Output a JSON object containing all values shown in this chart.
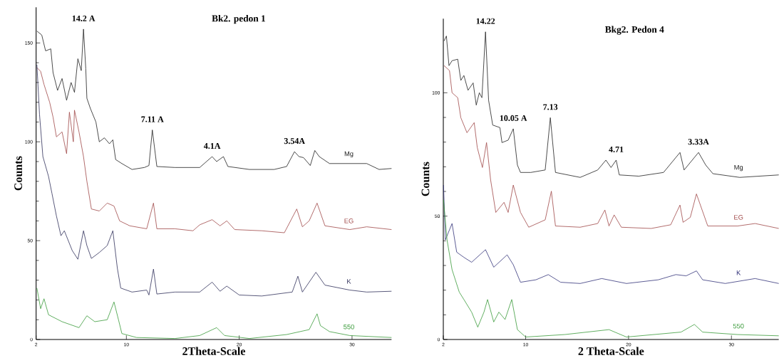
{
  "chart_data": [
    {
      "type": "line",
      "title": "Bk2. pedon 1",
      "xlabel": "2Theta-Scale",
      "ylabel": "Counts",
      "xlim": [
        2,
        33.5
      ],
      "ylim": [
        0,
        168
      ],
      "xticks": [
        2,
        10,
        20,
        30
      ],
      "yticks": [
        0,
        50,
        100,
        150
      ],
      "series": [
        {
          "name": "Mg",
          "color": "#202020",
          "x": [
            2.07,
            2.5,
            2.84,
            3.3,
            3.5,
            3.9,
            4.3,
            4.7,
            5.1,
            5.4,
            5.7,
            6.0,
            6.2,
            6.4,
            6.5,
            6.8,
            7.3,
            7.6,
            8.05,
            8.5,
            8.8,
            9.05,
            9.6,
            10.5,
            11.6,
            12.0,
            12.3,
            12.7,
            14.3,
            16.5,
            17.6,
            18.0,
            18.6,
            19.0,
            20.9,
            23.1,
            24.2,
            24.9,
            25.3,
            25.7,
            26.3,
            26.7,
            27.1,
            28.0,
            29.8,
            31.3,
            32.4,
            33.5
          ],
          "values": [
            156,
            154,
            146,
            147,
            135,
            126,
            132,
            121,
            130,
            125,
            142,
            136,
            157,
            137,
            122,
            117,
            110,
            100,
            102,
            99,
            101,
            91,
            89,
            86,
            87,
            88,
            106,
            87.5,
            87,
            87,
            92.5,
            90,
            92.5,
            87.5,
            86,
            86,
            87.5,
            95,
            92.5,
            92,
            88,
            95.6,
            92.5,
            89,
            89,
            89,
            86,
            86.5
          ]
        },
        {
          "name": "EG",
          "color": "#a04848",
          "x": [
            2.07,
            2.4,
            2.7,
            3.2,
            3.5,
            3.8,
            4.3,
            4.7,
            4.95,
            5.3,
            5.4,
            5.8,
            6.2,
            6.5,
            6.9,
            7.6,
            8.3,
            8.9,
            9.4,
            10.3,
            11.8,
            12.4,
            12.7,
            14.3,
            15.9,
            16.5,
            17.6,
            18.3,
            18.9,
            19.6,
            22.0,
            24.0,
            25.1,
            25.6,
            26.2,
            26.9,
            27.6,
            29.8,
            31.3,
            33.5
          ],
          "values": [
            137.5,
            135.6,
            129,
            120,
            112.5,
            102.5,
            105,
            94,
            115,
            100,
            116,
            105,
            92.5,
            80,
            66,
            65,
            69,
            67.5,
            60,
            57.5,
            56,
            69,
            56,
            56,
            55,
            58,
            60.6,
            57.5,
            60,
            55.6,
            55,
            54,
            66,
            57,
            60,
            69,
            57.5,
            55.6,
            57,
            55.6
          ]
        },
        {
          "name": "K",
          "color": "#30305a",
          "x": [
            2.07,
            2.3,
            2.6,
            3.1,
            3.4,
            3.8,
            4.2,
            4.5,
            5.2,
            5.7,
            6.2,
            6.5,
            6.9,
            7.6,
            8.3,
            8.8,
            9.2,
            9.5,
            10.5,
            11.8,
            12.0,
            12.4,
            12.7,
            14.3,
            16.5,
            17.6,
            18.3,
            18.9,
            20.0,
            22.0,
            24.7,
            25.2,
            25.6,
            26.8,
            27.6,
            29.8,
            31.3,
            33.5
          ],
          "values": [
            139,
            114,
            92.5,
            82.5,
            74,
            62.5,
            52.5,
            55,
            45,
            40.6,
            55,
            47.5,
            41,
            44,
            47.5,
            55,
            36,
            26,
            24,
            25,
            22.5,
            35.6,
            23,
            24,
            24,
            29,
            24.4,
            27,
            22.5,
            22,
            24,
            32,
            24,
            34,
            27.5,
            25,
            24,
            24.4
          ]
        },
        {
          "name": "550",
          "color": "#3a9a3a",
          "x": [
            2.07,
            2.4,
            2.7,
            3.1,
            4.3,
            5.8,
            6.5,
            7.2,
            8.3,
            8.9,
            9.3,
            9.6,
            10.9,
            14.3,
            16.5,
            18.0,
            18.7,
            20.9,
            24.2,
            26.2,
            26.9,
            27.2,
            28.0,
            29.8,
            33.5
          ],
          "values": [
            26,
            15.6,
            20.6,
            12.5,
            9,
            6,
            12,
            9,
            10,
            19,
            10,
            3,
            1,
            0.5,
            2,
            6,
            2,
            0.5,
            2.5,
            5,
            13,
            7,
            4,
            2,
            1
          ]
        }
      ],
      "annotations": [
        {
          "text": "14.2 A",
          "x": 6.2,
          "y": 157
        },
        {
          "text": "7.11 A",
          "x": 12.3,
          "y": 106
        },
        {
          "text": "4.1A",
          "x": 17.6,
          "y": 92.5
        },
        {
          "text": "3.54A",
          "x": 24.9,
          "y": 95
        }
      ]
    },
    {
      "type": "line",
      "title": "Bkg2. Pedon 4",
      "xlabel": "2 Theta-Scale",
      "ylabel": "Counts",
      "xlim": [
        2,
        34.6
      ],
      "ylim": [
        0,
        130
      ],
      "xticks": [
        2,
        10,
        20,
        30
      ],
      "yticks": [
        0,
        50,
        100
      ],
      "series": [
        {
          "name": "Mg",
          "color": "#202020",
          "x": [
            2.07,
            2.3,
            2.55,
            2.85,
            3.4,
            3.7,
            4.0,
            4.4,
            4.9,
            5.2,
            5.5,
            5.75,
            6.1,
            6.4,
            6.8,
            7.5,
            7.7,
            8.3,
            8.8,
            9.2,
            9.5,
            10.5,
            11.9,
            12.4,
            12.9,
            15.3,
            17.0,
            17.8,
            18.3,
            18.8,
            19.1,
            21.0,
            23.4,
            25.0,
            25.4,
            26.8,
            27.5,
            28.2,
            30.8,
            34.6
          ],
          "values": [
            121,
            123,
            111,
            113,
            113.6,
            105,
            107,
            101,
            104,
            95,
            100,
            98,
            124.7,
            97,
            86.9,
            85.9,
            79.8,
            80.8,
            85.4,
            70.7,
            67.7,
            67.7,
            68.7,
            89.9,
            67.7,
            65.7,
            68.7,
            72.7,
            69.7,
            72.7,
            66.7,
            66.2,
            67.7,
            75.8,
            68.7,
            75.8,
            70.7,
            67.2,
            65.7,
            66.7
          ]
        },
        {
          "name": "EG",
          "color": "#a04848",
          "x": [
            2.07,
            2.6,
            2.85,
            3.4,
            3.7,
            4.3,
            5.0,
            5.3,
            5.8,
            6.2,
            6.6,
            7.1,
            7.9,
            8.3,
            8.8,
            9.5,
            10.3,
            11.9,
            12.5,
            12.9,
            15.3,
            17.0,
            17.7,
            18.1,
            18.6,
            19.3,
            22.2,
            24.1,
            25.0,
            25.3,
            26.0,
            26.6,
            27.7,
            30.6,
            32.3,
            34.6
          ],
          "values": [
            111,
            109,
            100,
            98,
            89.9,
            83.8,
            87.9,
            77.8,
            69.7,
            79.8,
            64.6,
            51.5,
            55.6,
            51.5,
            62.6,
            51.5,
            45.5,
            48.5,
            60.1,
            46,
            45.5,
            47,
            52.5,
            46,
            50.5,
            45.5,
            45,
            46.5,
            54.5,
            47.5,
            49.5,
            59,
            46,
            46,
            47,
            45
          ]
        },
        {
          "name": "K",
          "color": "#33337a",
          "x": [
            2.02,
            2.2,
            2.85,
            3.3,
            4.0,
            4.75,
            6.1,
            6.9,
            8.2,
            8.8,
            9.5,
            11.0,
            12.2,
            13.4,
            15.3,
            17.4,
            19.8,
            22.9,
            24.6,
            25.6,
            26.6,
            27.2,
            29.4,
            32.3,
            34.6
          ],
          "values": [
            62.6,
            40.4,
            47,
            35.4,
            33.3,
            31.3,
            36.4,
            29.3,
            34.3,
            30.3,
            23.2,
            24.2,
            26.3,
            23.2,
            22.7,
            24.7,
            22.7,
            24.2,
            26.3,
            25.8,
            27.8,
            24.2,
            22.7,
            24.7,
            22.7
          ]
        },
        {
          "name": "550",
          "color": "#3a9a3a",
          "x": [
            2.02,
            2.36,
            2.85,
            3.55,
            4.0,
            4.75,
            5.35,
            5.95,
            6.3,
            6.9,
            7.4,
            8.0,
            8.65,
            9.2,
            10.0,
            13.8,
            18.1,
            19.8,
            25.1,
            26.4,
            27.2,
            30.6,
            34.6
          ],
          "values": [
            56.6,
            40.4,
            28.3,
            19.2,
            16.2,
            11.1,
            5,
            11.1,
            16.2,
            7.1,
            11.1,
            8.1,
            16.2,
            4,
            1,
            2,
            4,
            1,
            3,
            6.1,
            3,
            2,
            1.5
          ]
        }
      ],
      "annotations": [
        {
          "text": "14.22",
          "x": 6.1,
          "y": 124.7
        },
        {
          "text": "10.05 A",
          "x": 8.8,
          "y": 85.4
        },
        {
          "text": "7.13",
          "x": 12.4,
          "y": 89.9
        },
        {
          "text": "4.71",
          "x": 18.8,
          "y": 72.7
        },
        {
          "text": "3.33A",
          "x": 26.8,
          "y": 75.8
        }
      ]
    }
  ]
}
